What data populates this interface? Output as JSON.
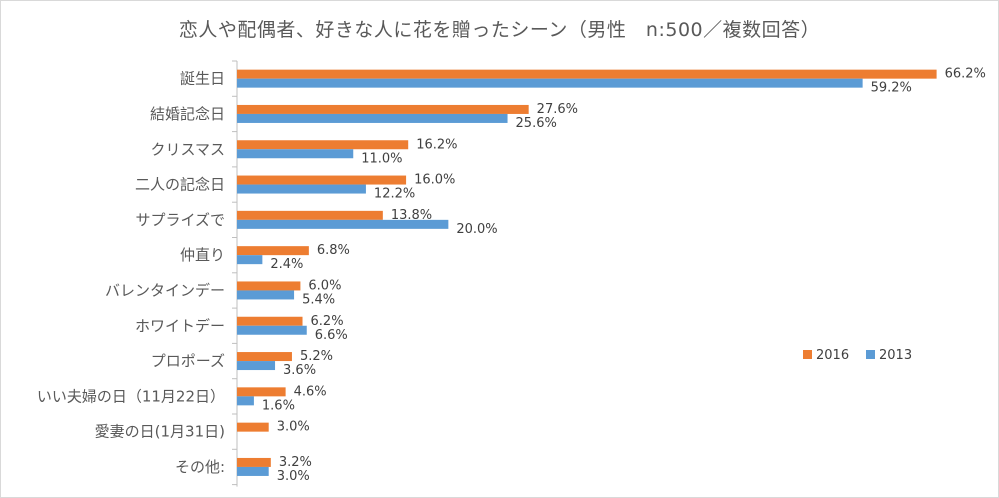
{
  "chart_data": {
    "type": "bar",
    "orientation": "horizontal",
    "title": "恋人や配偶者、好きな人に花を贈ったシーン（男性　n:500／複数回答）",
    "categories": [
      "誕生日",
      "結婚記念日",
      "クリスマス",
      "二人の記念日",
      "サプライズで",
      "仲直り",
      "バレンタインデー",
      "ホワイトデー",
      "プロポーズ",
      "いい夫婦の日（11月22日）",
      "愛妻の日(1月31日)",
      "その他:"
    ],
    "series": [
      {
        "name": "2016",
        "color": "#ed7d31",
        "values": [
          66.2,
          27.6,
          16.2,
          16.0,
          13.8,
          6.8,
          6.0,
          6.2,
          5.2,
          4.6,
          3.0,
          3.2
        ],
        "labels": [
          "66.2%",
          "27.6%",
          "16.2%",
          "16.0%",
          "13.8%",
          "6.8%",
          "6.0%",
          "6.2%",
          "5.2%",
          "4.6%",
          "3.0%",
          "3.2%"
        ]
      },
      {
        "name": "2013",
        "color": "#5b9bd5",
        "values": [
          59.2,
          25.6,
          11.0,
          12.2,
          20.0,
          2.4,
          5.4,
          6.6,
          3.6,
          1.6,
          null,
          3.0
        ],
        "labels": [
          "59.2%",
          "25.6%",
          "11.0%",
          "12.2%",
          "20.0%",
          "2.4%",
          "5.4%",
          "6.6%",
          "3.6%",
          "1.6%",
          null,
          "3.0%"
        ]
      }
    ],
    "xlim": [
      0,
      70
    ],
    "grid": false,
    "legend_position": "right"
  }
}
